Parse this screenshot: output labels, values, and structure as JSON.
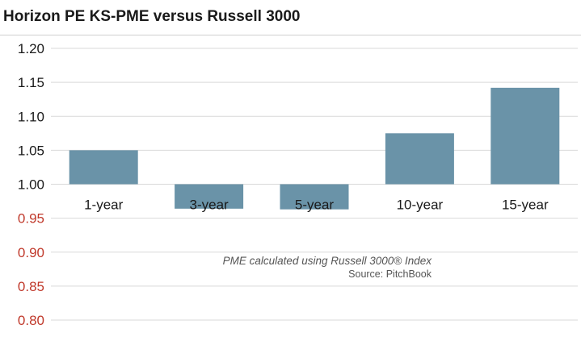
{
  "header": {
    "title": "Horizon PE KS-PME versus Russell 3000"
  },
  "footnote": {
    "note": "PME calculated using Russell 3000® Index",
    "source": "Source: PitchBook"
  },
  "colors": {
    "bar": "#6a93a8",
    "tick_default": "#1a1a1a",
    "tick_below_baseline": "#c0392b",
    "grid": "#d9d9d9"
  },
  "chart_data": {
    "type": "bar",
    "title": "Horizon PE KS-PME versus Russell 3000",
    "categories": [
      "1-year",
      "3-year",
      "5-year",
      "10-year",
      "15-year"
    ],
    "values": [
      1.05,
      0.964,
      0.963,
      1.075,
      1.142
    ],
    "baseline": 1.0,
    "ylim": [
      0.8,
      1.2
    ],
    "yticks": [
      "1.20",
      "1.15",
      "1.10",
      "1.05",
      "1.00",
      "0.95",
      "0.90",
      "0.85",
      "0.80"
    ],
    "grid": true,
    "xlabel": "",
    "ylabel": ""
  }
}
